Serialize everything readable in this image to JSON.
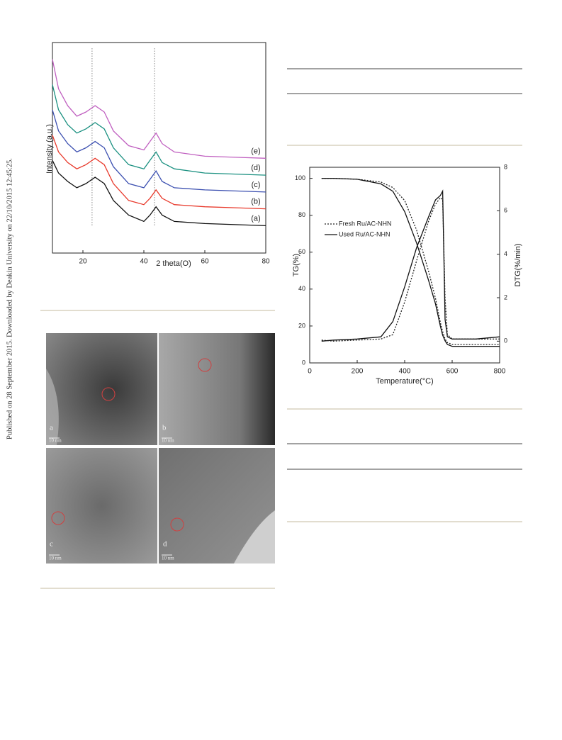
{
  "side_note": "Published on 28 September 2015. Downloaded by Deakin University on 22/10/2015 12:45:25.",
  "tem": {
    "panels": [
      {
        "label": "a",
        "scale": "10 nm"
      },
      {
        "label": "b",
        "scale": "10 nm"
      },
      {
        "label": "c",
        "scale": "10 nm"
      },
      {
        "label": "d",
        "scale": "10 nm"
      }
    ]
  },
  "chart_data": [
    {
      "type": "line",
      "xlabel": "2 theta(O)",
      "ylabel": "Intensity (a.u.)",
      "xlim": [
        10,
        80
      ],
      "ylim": [
        0,
        100
      ],
      "xticks": [
        20,
        40,
        60,
        80
      ],
      "vlines": [
        23,
        43.5
      ],
      "x": [
        10,
        12,
        15,
        18,
        21,
        24,
        27,
        30,
        35,
        40,
        42,
        44,
        46,
        50,
        60,
        70,
        80
      ],
      "series": [
        {
          "name": "(a)",
          "color": "#111111",
          "values": [
            44,
            38,
            34,
            31,
            33,
            36,
            33,
            25,
            18,
            15,
            18,
            22,
            18,
            15,
            14,
            13.5,
            13
          ]
        },
        {
          "name": "(b)",
          "color": "#e8392b",
          "values": [
            56,
            48,
            43,
            40,
            42,
            45,
            42,
            33,
            25,
            23,
            26,
            30,
            26,
            23,
            22,
            21.5,
            21
          ]
        },
        {
          "name": "(c)",
          "color": "#3b4fb0",
          "values": [
            68,
            58,
            52,
            48,
            50,
            53,
            50,
            41,
            33,
            31,
            35,
            39,
            34,
            31,
            30,
            29.5,
            29
          ]
        },
        {
          "name": "(d)",
          "color": "#1a9080",
          "values": [
            80,
            68,
            61,
            57,
            59,
            62,
            59,
            50,
            42,
            40,
            44,
            48,
            43,
            40,
            38,
            37.5,
            37
          ]
        },
        {
          "name": "(e)",
          "color": "#c060c0",
          "values": [
            92,
            78,
            70,
            65,
            67,
            70,
            67,
            58,
            51,
            49,
            53,
            57,
            52,
            48,
            46,
            45.5,
            45
          ]
        }
      ]
    },
    {
      "type": "line",
      "xlabel": "Temperature(°C)",
      "ylabel": "TG(%)",
      "y2label": "DTG(%/min)",
      "xlim": [
        0,
        800
      ],
      "ylim": [
        0,
        106
      ],
      "y2lim": [
        -1,
        8
      ],
      "xticks": [
        0,
        200,
        400,
        600,
        800
      ],
      "yticks": [
        0,
        20,
        40,
        60,
        80,
        100
      ],
      "y2ticks": [
        0,
        2,
        4,
        6,
        8
      ],
      "x": [
        50,
        100,
        200,
        300,
        350,
        400,
        450,
        500,
        530,
        550,
        560,
        570,
        580,
        600,
        700,
        800
      ],
      "series": [
        {
          "name": "Fresh Ru/AC-NHN",
          "color": "#222222",
          "style": "dotted",
          "values": [
            100,
            100,
            99.5,
            98,
            95,
            88,
            72,
            50,
            35,
            22,
            17,
            13,
            11,
            10,
            10,
            10
          ],
          "y2_values": [
            0.05,
            0,
            0.05,
            0.1,
            0.3,
            1.8,
            3.7,
            5.5,
            6.3,
            6.6,
            6.5,
            2,
            0.3,
            0.1,
            0.1,
            0.1
          ]
        },
        {
          "name": "Used Ru/AC-NHN",
          "color": "#111111",
          "style": "solid",
          "values": [
            100,
            100,
            99.5,
            97,
            93,
            82,
            65,
            45,
            32,
            20,
            15,
            12,
            10,
            9,
            9,
            9
          ],
          "y2_values": [
            0,
            0.05,
            0.1,
            0.2,
            0.9,
            2.5,
            4.3,
            5.7,
            6.5,
            6.7,
            6.9,
            1,
            0.2,
            0.1,
            0.1,
            0.2
          ]
        }
      ]
    }
  ]
}
